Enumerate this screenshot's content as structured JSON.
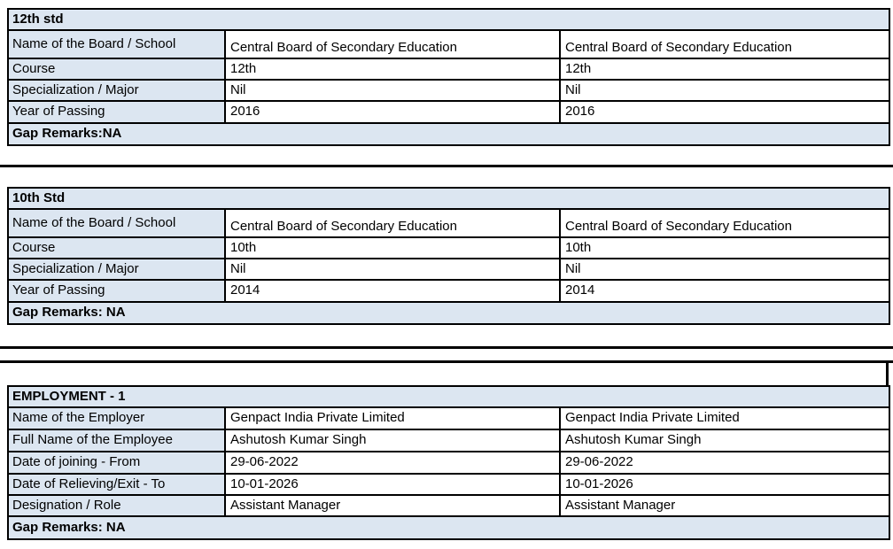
{
  "theme": {
    "page-bg": "#ffffff",
    "fill": "#dce6f1",
    "border": "#000000",
    "text": "#000000"
  },
  "tables": [
    {
      "title": "12th std",
      "rows": [
        {
          "label": "Name of the Board / School",
          "values": [
            "Central Board of Secondary Education",
            "Central Board of Secondary Education"
          ]
        },
        {
          "label": "Course",
          "values": [
            "12th",
            "12th"
          ]
        },
        {
          "label": "Specialization / Major",
          "values": [
            "Nil",
            "Nil"
          ]
        },
        {
          "label": "Year of Passing",
          "values": [
            "2016",
            "2016"
          ]
        }
      ],
      "gap_remarks": "Gap Remarks:NA"
    },
    {
      "title": "10th Std",
      "rows": [
        {
          "label": "Name of the Board / School",
          "values": [
            "Central Board of Secondary Education",
            "Central Board of Secondary Education"
          ]
        },
        {
          "label": "Course",
          "values": [
            "10th",
            "10th"
          ]
        },
        {
          "label": "Specialization / Major",
          "values": [
            "Nil",
            "Nil"
          ]
        },
        {
          "label": "Year of Passing",
          "values": [
            "2014",
            "2014"
          ]
        }
      ],
      "gap_remarks": "Gap Remarks: NA"
    },
    {
      "title": "EMPLOYMENT - 1",
      "rows": [
        {
          "label": "Name of the Employer",
          "values": [
            "Genpact India Private Limited",
            "Genpact India Private Limited"
          ]
        },
        {
          "label": "Full Name of the Employee",
          "values": [
            "Ashutosh Kumar Singh",
            "Ashutosh Kumar Singh"
          ]
        },
        {
          "label": "Date of joining - From",
          "values": [
            "29-06-2022",
            "29-06-2022"
          ]
        },
        {
          "label": "Date of Relieving/Exit - To",
          "values": [
            "10-01-2026",
            "10-01-2026"
          ]
        },
        {
          "label": "Designation / Role",
          "values": [
            "Assistant Manager",
            "Assistant Manager"
          ]
        }
      ],
      "gap_remarks": "Gap Remarks: NA"
    }
  ]
}
